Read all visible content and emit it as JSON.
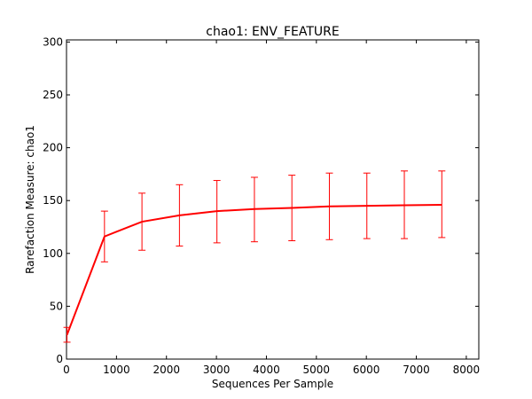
{
  "chart_data": {
    "type": "line",
    "title": "chao1: ENV_FEATURE",
    "xlabel": "Sequences Per Sample",
    "ylabel": "Rarefaction Measure: chao1",
    "xlim": [
      0,
      8250
    ],
    "ylim": [
      0,
      302
    ],
    "x_ticks": [
      0,
      1000,
      2000,
      3000,
      4000,
      5000,
      6000,
      7000,
      8000
    ],
    "y_ticks": [
      0,
      50,
      100,
      150,
      200,
      250,
      300
    ],
    "grid": false,
    "line_color": "#ff0000",
    "series": [
      {
        "x": [
          10,
          760,
          1510,
          2260,
          3010,
          3760,
          4510,
          5260,
          6010,
          6760,
          7510
        ],
        "values": [
          23,
          116,
          130,
          136,
          140,
          142,
          143,
          144.5,
          145,
          145.5,
          146
        ],
        "error_low": [
          16,
          92,
          103,
          107,
          110,
          111,
          112,
          113,
          114,
          114,
          115
        ],
        "error_high": [
          30,
          140,
          157,
          165,
          169,
          172,
          174,
          176,
          176,
          178,
          178
        ]
      }
    ]
  }
}
